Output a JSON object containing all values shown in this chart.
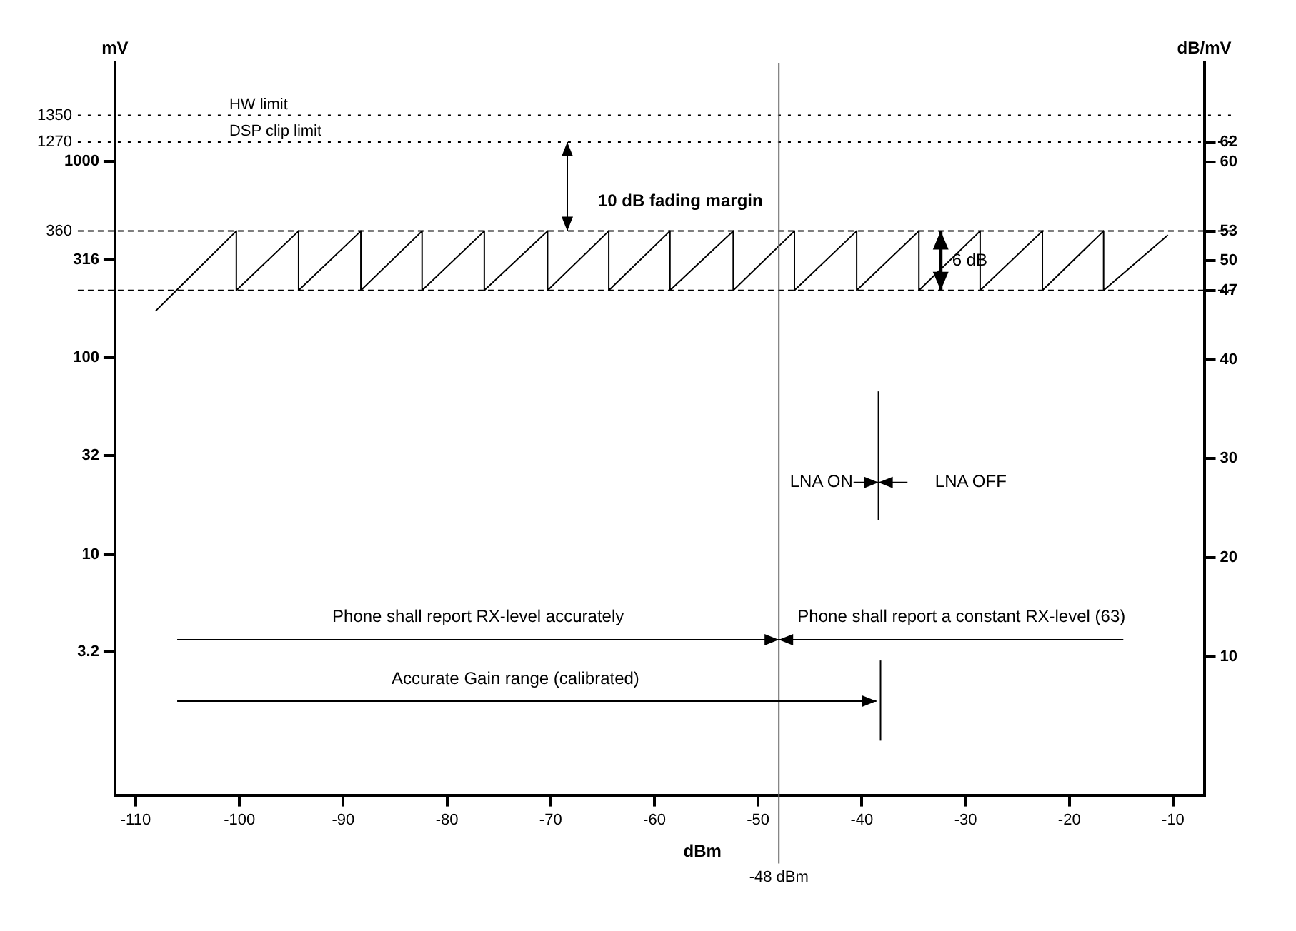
{
  "chart_data": {
    "type": "line",
    "xlabel": "dBm",
    "ylabel": "mV",
    "y2label": "dB/mV",
    "log": "y",
    "xlim": [
      -112,
      -7
    ],
    "xticks": [
      -110,
      -100,
      -90,
      -80,
      -70,
      -60,
      -50,
      -40,
      -30,
      -20,
      -10
    ],
    "ylim": [
      0.63,
      3162
    ],
    "yticks": [
      3.2,
      10,
      32,
      100,
      316,
      1000
    ],
    "y2lim": [
      -4,
      70
    ],
    "y2ticks": [
      10,
      20,
      30,
      40,
      47,
      50,
      53,
      60,
      62
    ],
    "grid": false,
    "legend": false,
    "marker": "none",
    "line_style": "solid",
    "series": [
      {
        "color": "#000000",
        "axis": "y2",
        "x": [
          -108.1,
          -100.3,
          -100.3,
          -94.3,
          -94.3,
          -88.3,
          -88.3,
          -82.4,
          -82.4,
          -76.4,
          -76.4,
          -70.3,
          -70.3,
          -64.4,
          -64.4,
          -58.5,
          -58.5,
          -52.4,
          -52.4,
          -46.5,
          -46.5,
          -40.5,
          -40.5,
          -34.5,
          -34.5,
          -28.6,
          -28.6,
          -22.6,
          -22.6,
          -16.7,
          -16.7,
          -10.5
        ],
        "values": [
          44.9,
          53,
          47,
          53,
          47,
          53,
          47,
          53,
          47,
          53,
          47,
          53,
          47,
          53,
          47,
          53,
          47,
          53,
          47,
          53,
          47,
          53,
          47,
          53,
          47,
          53,
          47,
          53,
          47,
          53,
          47,
          52.6
        ]
      }
    ],
    "ref_lines": [
      {
        "axis": "y2",
        "value": 64.7,
        "label": "HW limit",
        "line_style": "dotted",
        "color": "#000000"
      },
      {
        "axis": "y2",
        "value": 62,
        "label": "DSP clip limit",
        "line_style": "dotted",
        "color": "#000000"
      },
      {
        "axis": "y2",
        "value": 53,
        "line_style": "dashed",
        "color": "#000000"
      },
      {
        "axis": "y2",
        "value": 47,
        "line_style": "dashed",
        "color": "#000000"
      },
      {
        "axis": "x",
        "value": -48,
        "label": "-48 dBm",
        "line_style": "solid",
        "color": "#666666"
      }
    ],
    "annotations": [
      "1350",
      "1270",
      "360",
      "10 dB fading margin",
      "6 dB",
      "LNA ON",
      "LNA OFF",
      "Phone shall report RX-level accurately",
      "Phone shall report a constant RX-level (63)",
      "Accurate Gain range (calibrated)"
    ]
  }
}
